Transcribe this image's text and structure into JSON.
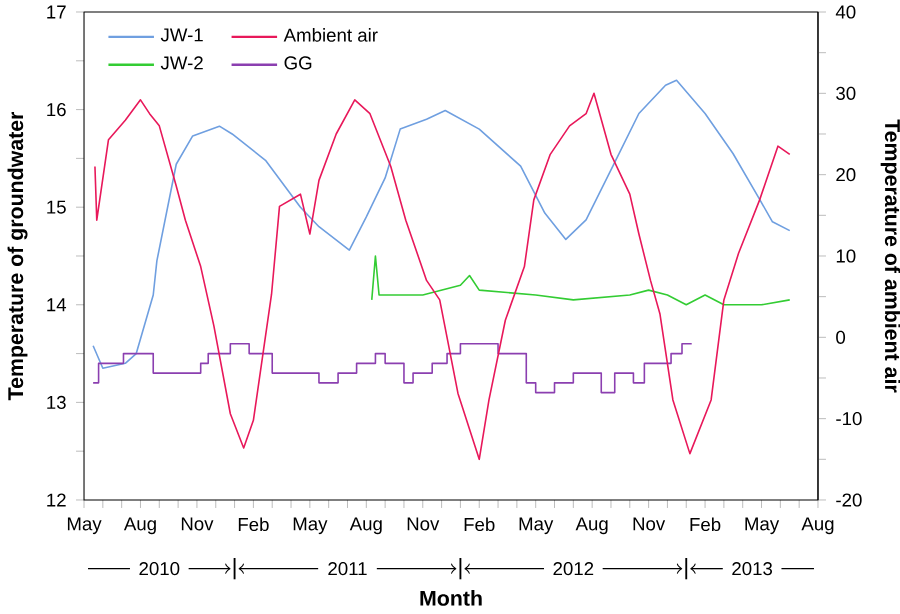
{
  "chart_data": {
    "type": "line",
    "xlabel": "Month",
    "ylabel": "Temperature of groundwater",
    "y2label": "Temperature of ambient air",
    "annotations": [
      "2010",
      "2011",
      "2012",
      "2013"
    ],
    "xlim": [
      "2010-05",
      "2013-08"
    ],
    "xticks": [
      {
        "value": "2010-05",
        "label": "May"
      },
      {
        "value": "2010-06",
        "label": null
      },
      {
        "value": "2010-07",
        "label": null
      },
      {
        "value": "2010-08",
        "label": "Aug"
      },
      {
        "value": "2010-09",
        "label": null
      },
      {
        "value": "2010-10",
        "label": null
      },
      {
        "value": "2010-11",
        "label": "Nov"
      },
      {
        "value": "2010-12",
        "label": null
      },
      {
        "value": "2011-01",
        "label": null
      },
      {
        "value": "2011-02",
        "label": "Feb"
      },
      {
        "value": "2011-03",
        "label": null
      },
      {
        "value": "2011-04",
        "label": null
      },
      {
        "value": "2011-05",
        "label": "May"
      },
      {
        "value": "2011-06",
        "label": null
      },
      {
        "value": "2011-07",
        "label": null
      },
      {
        "value": "2011-08",
        "label": "Aug"
      },
      {
        "value": "2011-09",
        "label": null
      },
      {
        "value": "2011-10",
        "label": null
      },
      {
        "value": "2011-11",
        "label": "Nov"
      },
      {
        "value": "2011-12",
        "label": null
      },
      {
        "value": "2012-01",
        "label": null
      },
      {
        "value": "2012-02",
        "label": "Feb"
      },
      {
        "value": "2012-03",
        "label": null
      },
      {
        "value": "2012-04",
        "label": null
      },
      {
        "value": "2012-05",
        "label": "May"
      },
      {
        "value": "2012-06",
        "label": null
      },
      {
        "value": "2012-07",
        "label": null
      },
      {
        "value": "2012-08",
        "label": "Aug"
      },
      {
        "value": "2012-09",
        "label": null
      },
      {
        "value": "2012-10",
        "label": null
      },
      {
        "value": "2012-11",
        "label": "Nov"
      },
      {
        "value": "2012-12",
        "label": null
      },
      {
        "value": "2013-01",
        "label": null
      },
      {
        "value": "2013-02",
        "label": "Feb"
      },
      {
        "value": "2013-03",
        "label": null
      },
      {
        "value": "2013-04",
        "label": null
      },
      {
        "value": "2013-05",
        "label": "May"
      },
      {
        "value": "2013-06",
        "label": null
      },
      {
        "value": "2013-07",
        "label": null
      },
      {
        "value": "2013-08",
        "label": "Aug"
      }
    ],
    "ylim": [
      12,
      17
    ],
    "yticks": [
      12,
      {
        "value": 12.5,
        "label": null
      },
      13,
      {
        "value": 13.5,
        "label": null
      },
      14,
      {
        "value": 14.5,
        "label": null
      },
      15,
      {
        "value": 15.5,
        "label": null
      },
      16,
      {
        "value": 16.5,
        "label": null
      },
      17
    ],
    "y2lim": [
      -20,
      40
    ],
    "y2ticks": [
      -20,
      {
        "value": -15,
        "label": null
      },
      -10,
      {
        "value": -5,
        "label": null
      },
      0,
      {
        "value": 5,
        "label": null
      },
      10,
      {
        "value": 15,
        "label": null
      },
      20,
      {
        "value": 25,
        "label": null
      },
      30,
      {
        "value": 35,
        "label": null
      },
      40
    ],
    "legend": "top left",
    "grid": false,
    "marker": "none",
    "line_style": "solid",
    "series": [
      {
        "name": "JW-1",
        "color": "#6f9fe0",
        "x": [
          "2010-05-16",
          "2010-06-01",
          "2010-07-07",
          "2010-07-25",
          "2010-08-22",
          "2010-08-28",
          "2010-09-28",
          "2010-10-25",
          "2010-12-07",
          "2010-12-28",
          "2011-02-19",
          "2011-04-16",
          "2011-05-16",
          "2011-07-04",
          "2011-08-01",
          "2011-09-01",
          "2011-09-25",
          "2011-11-07",
          "2011-12-07",
          "2012-02-01",
          "2012-04-07",
          "2012-05-16",
          "2012-06-19",
          "2012-07-22",
          "2012-09-04",
          "2012-10-16",
          "2012-11-28",
          "2012-12-16",
          "2013-02-01",
          "2013-03-16",
          "2013-04-28",
          "2013-05-19",
          "2013-06-16"
        ],
        "values": [
          13.58,
          13.35,
          13.4,
          13.5,
          14.1,
          14.45,
          15.44,
          15.73,
          15.83,
          15.75,
          15.48,
          15.0,
          14.8,
          14.56,
          14.9,
          15.3,
          15.8,
          15.9,
          15.99,
          15.8,
          15.42,
          14.94,
          14.67,
          14.87,
          15.42,
          15.96,
          16.25,
          16.3,
          15.96,
          15.55,
          15.08,
          14.85,
          14.76
        ]
      },
      {
        "name": "Ambient air",
        "color": "#e8185a",
        "axis": "y2",
        "x": [
          "2010-05-19",
          "2010-05-22",
          "2010-06-10",
          "2010-07-07",
          "2010-08-01",
          "2010-08-16",
          "2010-09-01",
          "2010-09-28",
          "2010-10-13",
          "2010-11-07",
          "2010-11-28",
          "2010-12-25",
          "2011-01-16",
          "2011-02-01",
          "2011-02-28",
          "2011-03-13",
          "2011-04-16",
          "2011-05-01",
          "2011-05-16",
          "2011-06-13",
          "2011-07-13",
          "2011-08-07",
          "2011-09-10",
          "2011-10-04",
          "2011-11-07",
          "2011-11-28",
          "2011-12-28",
          "2012-02-01",
          "2012-02-16",
          "2012-03-13",
          "2012-04-13",
          "2012-04-28",
          "2012-05-25",
          "2012-06-25",
          "2012-07-22",
          "2012-08-04",
          "2012-09-01",
          "2012-10-01",
          "2012-10-16",
          "2012-11-04",
          "2012-11-19",
          "2012-12-10",
          "2013-01-07",
          "2013-02-10",
          "2013-03-01",
          "2013-03-25",
          "2013-04-28",
          "2013-05-28",
          "2013-06-16"
        ],
        "values": [
          21,
          14.4,
          24.3,
          26.7,
          29.2,
          27.5,
          26,
          18.6,
          14.4,
          8.7,
          1.4,
          -9.4,
          -13.6,
          -10.2,
          5.3,
          16.1,
          17.6,
          12.7,
          19.3,
          25,
          29.2,
          27.5,
          21,
          14.4,
          7,
          4.6,
          -6.9,
          -15,
          -7.7,
          2.1,
          8.7,
          16.9,
          22.5,
          26,
          27.5,
          30,
          22.5,
          17.6,
          12.7,
          7,
          2.9,
          -7.7,
          -14.3,
          -7.7,
          4.6,
          10.3,
          16.9,
          23.5,
          22.5
        ]
      },
      {
        "name": "JW-2",
        "color": "#33cc33",
        "x": [
          "2011-08-10",
          "2011-08-16",
          "2011-08-22",
          "2011-11-01",
          "2012-01-01",
          "2012-01-16",
          "2012-02-01",
          "2012-05-01",
          "2012-07-01",
          "2012-10-01",
          "2012-11-01",
          "2012-12-01",
          "2013-01-01",
          "2013-02-01",
          "2013-03-01",
          "2013-05-01",
          "2013-06-16"
        ],
        "values": [
          14.05,
          14.5,
          14.1,
          14.1,
          14.2,
          14.3,
          14.15,
          14.1,
          14.05,
          14.1,
          14.15,
          14.1,
          14.0,
          14.1,
          14.0,
          14.0,
          14.05
        ]
      },
      {
        "name": "GG",
        "color": "#8b3fb0",
        "type": "step",
        "x": [
          "2010-05-16",
          "2010-05-25",
          "2010-07-04",
          "2010-08-22",
          "2010-11-07",
          "2010-11-19",
          "2010-12-25",
          "2011-01-25",
          "2011-03-01",
          "2011-05-16",
          "2011-06-16",
          "2011-07-16",
          "2011-08-16",
          "2011-09-01",
          "2011-10-01",
          "2011-10-16",
          "2011-11-16",
          "2011-12-10",
          "2012-01-01",
          "2012-03-01",
          "2012-04-16",
          "2012-05-01",
          "2012-06-01",
          "2012-07-01",
          "2012-08-16",
          "2012-09-07",
          "2012-10-07",
          "2012-10-25",
          "2012-12-07",
          "2012-12-25",
          "2013-01-10"
        ],
        "values": [
          13.2,
          13.4,
          13.5,
          13.3,
          13.4,
          13.5,
          13.6,
          13.5,
          13.3,
          13.2,
          13.3,
          13.4,
          13.5,
          13.4,
          13.2,
          13.3,
          13.4,
          13.5,
          13.6,
          13.5,
          13.2,
          13.1,
          13.2,
          13.3,
          13.1,
          13.3,
          13.2,
          13.4,
          13.5,
          13.6,
          13.6
        ]
      }
    ]
  }
}
